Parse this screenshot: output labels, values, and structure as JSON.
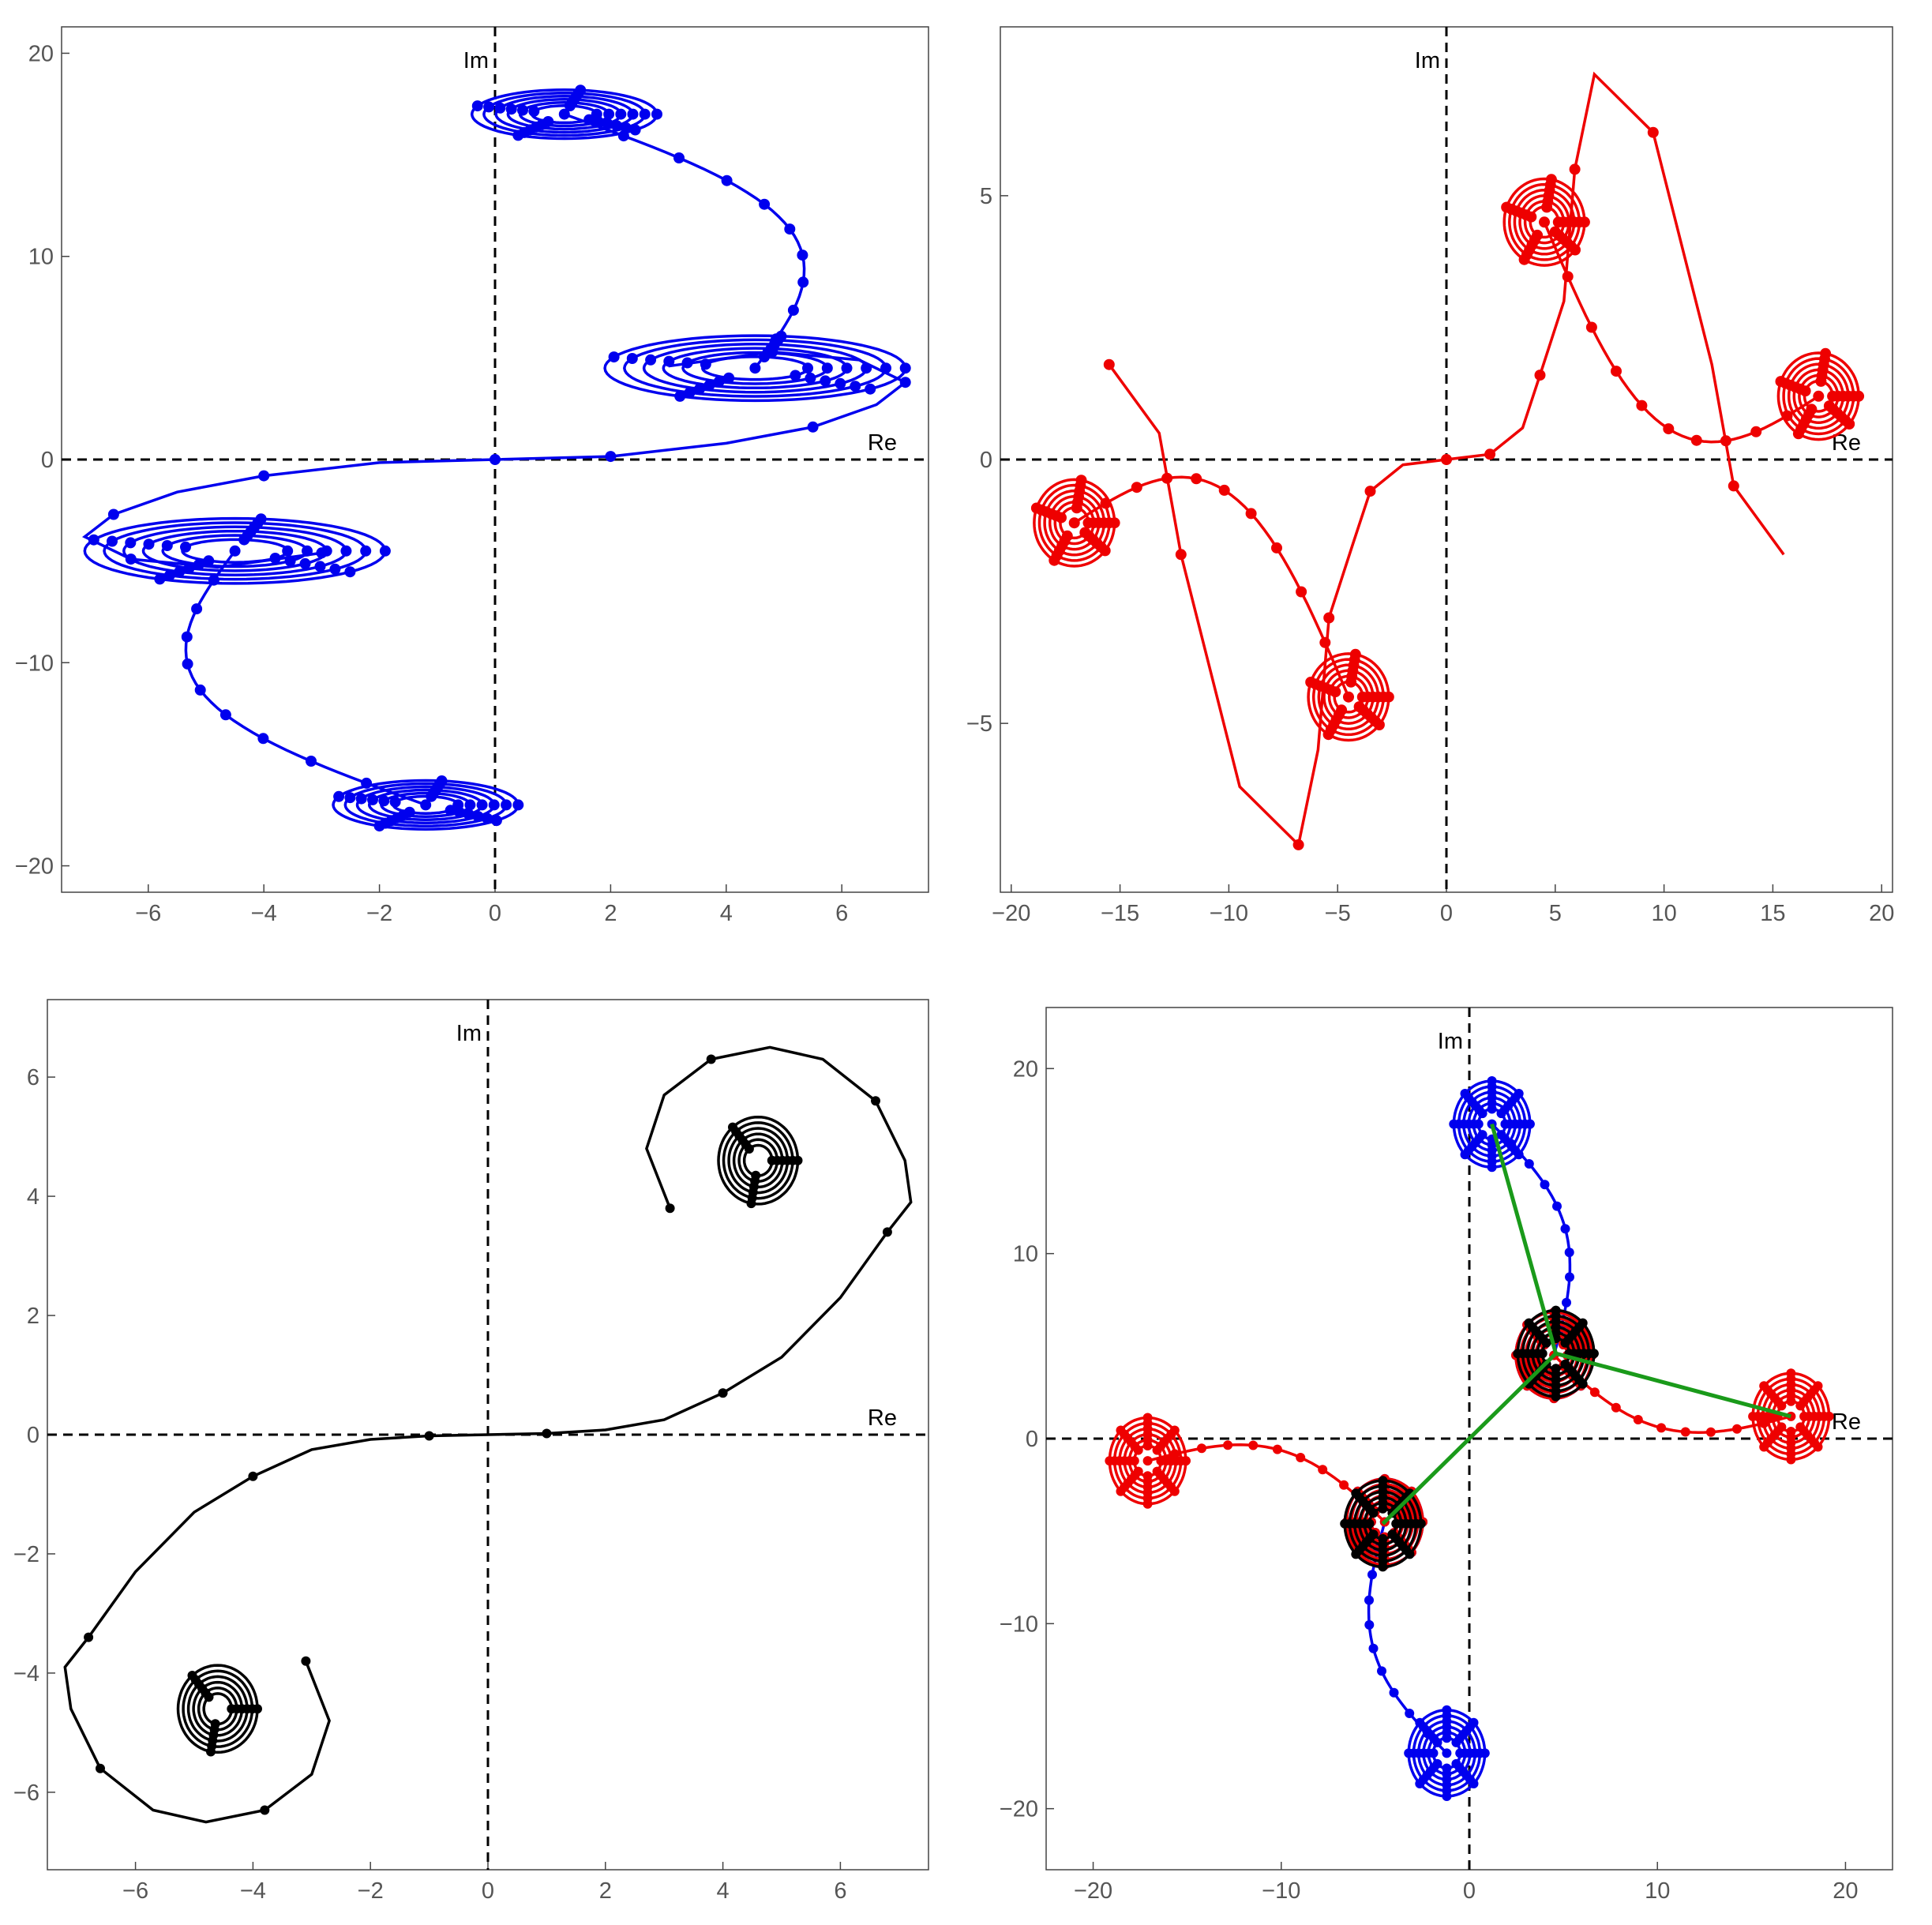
{
  "colors": {
    "panel1": "#0000ee",
    "panel2": "#ee0000",
    "panel3": "#000000",
    "connector": "#1a9a1a"
  },
  "chart_data": [
    {
      "type": "scatter",
      "title": "",
      "xlabel": "Re",
      "ylabel": "Im",
      "xlim": [
        -7.5,
        7.5
      ],
      "ylim": [
        -21.3,
        21.3
      ],
      "xticks": [
        -6,
        -4,
        -2,
        0,
        2,
        4,
        6
      ],
      "yticks": [
        -20,
        -10,
        0,
        10,
        20
      ],
      "xtick_labels": [
        "−6",
        "−4",
        "−2",
        "0",
        "2",
        "4",
        "6"
      ],
      "ytick_labels": [
        "−20",
        "−10",
        "0",
        "10",
        "20"
      ],
      "grid": false,
      "series": [
        {
          "color_key": "panel1",
          "style": "spiral chain with dot markers",
          "centers": [
            [
              4.5,
              4.5
            ],
            [
              1.2,
              17.0
            ],
            [
              -4.5,
              -4.5
            ],
            [
              -1.2,
              -17.0
            ]
          ],
          "center_radii": [
            [
              2.6,
              1.6
            ],
            [
              1.6,
              1.2
            ],
            [
              2.6,
              1.6
            ],
            [
              1.6,
              1.2
            ]
          ],
          "path": [
            [
              0,
              0
            ],
            [
              2,
              0.15
            ],
            [
              4,
              0.8
            ],
            [
              5.5,
              1.6
            ],
            [
              6.6,
              2.7
            ],
            [
              7.1,
              3.8
            ],
            [
              6.3,
              4.9
            ],
            [
              4.8,
              5.3
            ],
            [
              3.0,
              4.6
            ]
          ]
        }
      ]
    },
    {
      "type": "scatter",
      "title": "",
      "xlabel": "Re",
      "ylabel": "Im",
      "xlim": [
        -20.5,
        20.5
      ],
      "ylim": [
        -8.2,
        8.2
      ],
      "xticks": [
        -20,
        -15,
        -10,
        -5,
        0,
        5,
        10,
        15,
        20
      ],
      "yticks": [
        -5,
        0,
        5
      ],
      "xtick_labels": [
        "−20",
        "−15",
        "−10",
        "−5",
        "0",
        "5",
        "10",
        "15",
        "20"
      ],
      "ytick_labels": [
        "−5",
        "0",
        "5"
      ],
      "grid": false,
      "series": [
        {
          "color_key": "panel2",
          "style": "spiral chain with dot markers",
          "centers": [
            [
              4.5,
              4.5
            ],
            [
              17.1,
              1.2
            ],
            [
              -4.5,
              -4.5
            ],
            [
              -17.1,
              -1.2
            ]
          ],
          "path": [
            [
              0,
              0
            ],
            [
              2,
              0.1
            ],
            [
              3.5,
              0.6
            ],
            [
              4.3,
              1.6
            ],
            [
              5.4,
              3.0
            ],
            [
              5.9,
              5.5
            ],
            [
              6.8,
              7.3
            ],
            [
              9.5,
              6.2
            ],
            [
              12.2,
              1.8
            ],
            [
              13.2,
              -0.5
            ],
            [
              15.5,
              -1.8
            ]
          ]
        }
      ]
    },
    {
      "type": "scatter",
      "title": "",
      "xlabel": "Re",
      "ylabel": "Im",
      "xlim": [
        -7.5,
        7.5
      ],
      "ylim": [
        -7.3,
        7.3
      ],
      "xticks": [
        -6,
        -4,
        -2,
        0,
        2,
        4,
        6
      ],
      "yticks": [
        -6,
        -4,
        -2,
        0,
        2,
        4,
        6
      ],
      "xtick_labels": [
        "−6",
        "−4",
        "−2",
        "0",
        "2",
        "4",
        "6"
      ],
      "ytick_labels": [
        "−6",
        "−4",
        "−2",
        "0",
        "2",
        "4",
        "6"
      ],
      "grid": false,
      "series": [
        {
          "color_key": "panel3",
          "style": "spiral chain with dot markers",
          "centers": [
            [
              4.6,
              4.6
            ],
            [
              -4.6,
              -4.6
            ]
          ],
          "path": [
            [
              0,
              0
            ],
            [
              1,
              0.02
            ],
            [
              2,
              0.08
            ],
            [
              3,
              0.25
            ],
            [
              4,
              0.7
            ],
            [
              5,
              1.3
            ],
            [
              6,
              2.3
            ],
            [
              6.8,
              3.4
            ],
            [
              7.2,
              3.9
            ],
            [
              7.1,
              4.6
            ],
            [
              6.6,
              5.6
            ],
            [
              5.7,
              6.3
            ],
            [
              4.8,
              6.5
            ],
            [
              3.8,
              6.3
            ],
            [
              3.0,
              5.7
            ],
            [
              2.7,
              4.8
            ],
            [
              3.1,
              3.8
            ]
          ]
        }
      ]
    },
    {
      "type": "scatter",
      "title": "",
      "xlabel": "Re",
      "ylabel": "Im",
      "xlim": [
        -22.5,
        22.5
      ],
      "ylim": [
        -23.3,
        23.3
      ],
      "xticks": [
        -20,
        -10,
        0,
        10,
        20
      ],
      "yticks": [
        -20,
        -10,
        0,
        10,
        20
      ],
      "xtick_labels": [
        "−20",
        "−10",
        "0",
        "10",
        "20"
      ],
      "ytick_labels": [
        "−20",
        "−10",
        "0",
        "10",
        "20"
      ],
      "grid": false,
      "series": [
        {
          "color_key": "panel1",
          "style": "spiral chain with dot markers",
          "centers": [
            [
              4.5,
              4.5
            ],
            [
              1.2,
              17.0
            ],
            [
              -4.5,
              -4.5
            ],
            [
              -1.2,
              -17.0
            ]
          ]
        },
        {
          "color_key": "panel2",
          "style": "spiral chain with dot markers",
          "centers": [
            [
              4.5,
              4.5
            ],
            [
              17.1,
              1.2
            ],
            [
              -4.5,
              -4.5
            ],
            [
              -17.1,
              -1.2
            ]
          ]
        },
        {
          "color_key": "panel3",
          "style": "spiral chain with dot markers",
          "centers": [
            [
              4.6,
              4.6
            ],
            [
              -4.6,
              -4.6
            ]
          ]
        },
        {
          "color_key": "connector",
          "style": "line segments",
          "segments": [
            [
              [
                4.6,
                4.6
              ],
              [
                1.2,
                17.0
              ]
            ],
            [
              [
                4.6,
                4.6
              ],
              [
                17.1,
                1.2
              ]
            ],
            [
              [
                4.6,
                4.6
              ],
              [
                -4.6,
                -4.6
              ]
            ]
          ]
        }
      ]
    }
  ]
}
